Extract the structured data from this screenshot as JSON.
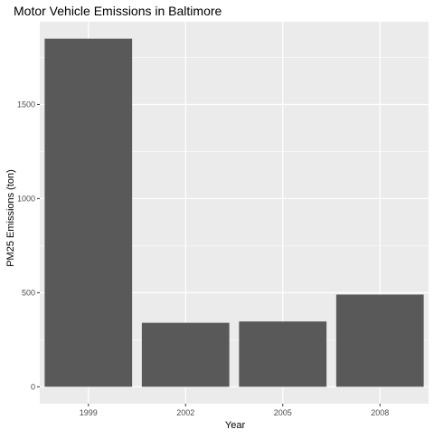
{
  "chart_data": {
    "type": "bar",
    "title": "Motor Vehicle Emissions in Baltimore",
    "xlabel": "Year",
    "ylabel": "PM25 Emissions (ton)",
    "categories": [
      "1999",
      "2002",
      "2005",
      "2008"
    ],
    "values": [
      1850,
      340,
      347,
      490
    ],
    "ylim": [
      -90,
      1940
    ],
    "yticks": [
      0,
      500,
      1000,
      1500
    ],
    "grid": true,
    "colors": {
      "panel_background": "#ebebeb",
      "grid_major": "#ffffff",
      "bar_fill": "#595959",
      "tick_label": "#4d4d4d",
      "tick_mark": "#333333"
    }
  }
}
